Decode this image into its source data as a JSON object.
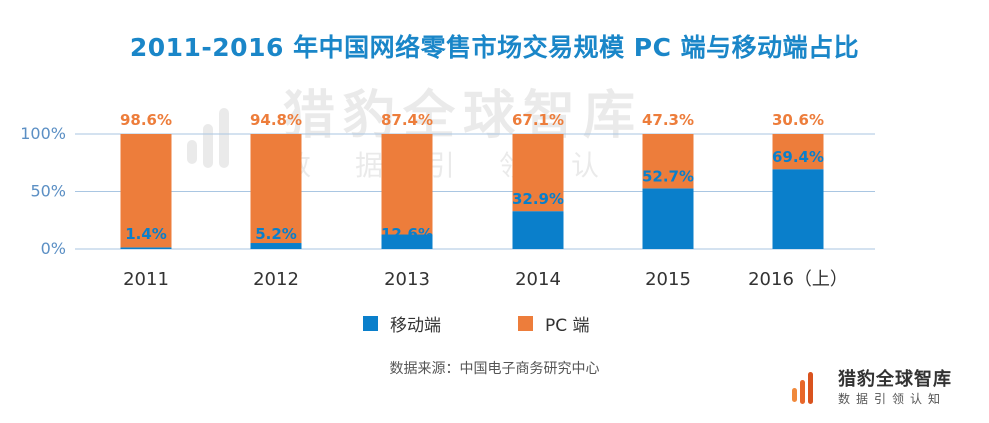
{
  "title": "2011-2016 年中国网络零售市场交易规模 PC 端与移动端占比",
  "source": "数据来源：中国电子商务研究中心",
  "brand": {
    "name": "猎豹全球智库",
    "slogan": "数据引领认知"
  },
  "colors": {
    "mobile": "#0a7fcb",
    "pc": "#ed7d3b",
    "title": "#1a86c8",
    "axis": "#5b8fc4",
    "grid": "#a9c6e2"
  },
  "chart_data": {
    "type": "bar",
    "stacked": true,
    "categories": [
      "2011",
      "2012",
      "2013",
      "2014",
      "2015",
      "2016（上）"
    ],
    "series": [
      {
        "name": "移动端",
        "values": [
          1.4,
          5.2,
          12.6,
          32.9,
          52.7,
          69.4
        ],
        "labels": [
          "1.4%",
          "5.2%",
          "12.6%",
          "32.9%",
          "52.7%",
          "69.4%"
        ]
      },
      {
        "name": "PC 端",
        "values": [
          98.6,
          94.8,
          87.4,
          67.1,
          47.3,
          30.6
        ],
        "labels": [
          "98.6%",
          "94.8%",
          "87.4%",
          "67.1%",
          "47.3%",
          "30.6%"
        ]
      }
    ],
    "yticks": [
      "0%",
      "50%",
      "100%"
    ],
    "ylim": [
      0,
      100
    ],
    "grid": true,
    "legend": "bottom"
  }
}
